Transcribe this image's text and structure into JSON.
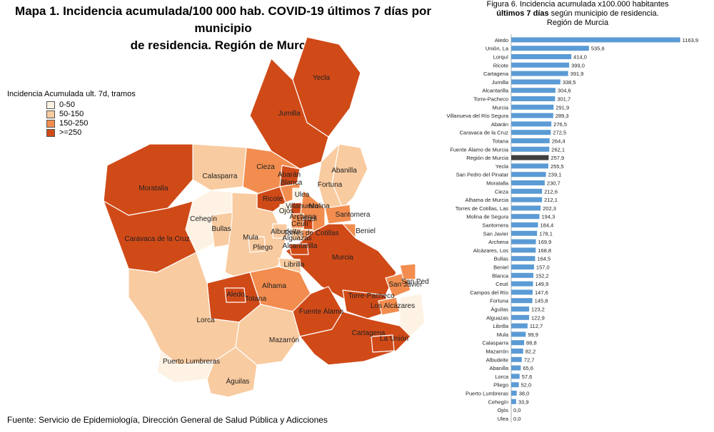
{
  "map": {
    "title_line1": "Mapa 1. Incidencia acumulada/100 000 hab. COVID-19 últimos 7 días por municipio",
    "title_line2": "de residencia. Región de Murcia",
    "legend_title": "Incidencia Acumulada ult. 7d, tramos",
    "legend": [
      {
        "label": "0-50",
        "color": "#fdf2e3"
      },
      {
        "label": "50-150",
        "color": "#f9cba0"
      },
      {
        "label": "150-250",
        "color": "#f28d4f"
      },
      {
        "label": ">=250",
        "color": "#d04a18"
      }
    ],
    "municipalities": [
      "Yecla",
      "Jumilla",
      "Abanilla",
      "Cieza",
      "Calasparra",
      "Moratalla",
      "Abarán",
      "Fortuna",
      "Blanca",
      "Ricote",
      "Ulea",
      "Ojós",
      "Villanueva",
      "Archena",
      "Molina",
      "Santomera",
      "Beniel",
      "Cehegín",
      "Bullas",
      "Mula",
      "Pliego",
      "Albudeite",
      "Ceutí",
      "Lorquí",
      "Alguazas",
      "Torres de Cotillas",
      "Caravaca de la Cruz",
      "Murcia",
      "Alcantarilla",
      "Librilla",
      "Alhama",
      "Aledo",
      "Totana",
      "Lorca",
      "Fuente Álamo",
      "Torre-Pacheco",
      "San Pedro",
      "San Javier",
      "Los Alcázares",
      "Cartagena",
      "La Unión",
      "Mazarrón",
      "Puerto Lumbreras",
      "Águilas"
    ],
    "source": "Fuente: Servicio de Epidemiología, Dirección General de Salud Pública y Adicciones"
  },
  "chart": {
    "title_line1": "Figura 6. Incidencia acumulada x100.000 habitantes",
    "title_line2": "últimos 7 días",
    "title_line2b": " según municipio de residencia.",
    "title_line3": "Región de Murcia"
  },
  "chart_data": {
    "type": "bar",
    "orientation": "horizontal",
    "bar_color": "#5b9bd5",
    "highlight_color": "#3f3f3f",
    "highlight_category": "Región de Murcia",
    "xlim": [
      0,
      1200
    ],
    "categories": [
      "Aledo",
      "Unión, La",
      "Lorquí",
      "Ricote",
      "Cartagena",
      "Jumilla",
      "Alcantarilla",
      "Torre-Pacheco",
      "Murcia",
      "Villanueva del Río Segura",
      "Abarán",
      "Caravaca de la Cruz",
      "Totana",
      "Fuente Álamo de Murcia",
      "Región de Murcia",
      "Yecla",
      "San Pedro del Pinatar",
      "Moratalla",
      "Cieza",
      "Alhama de Murcia",
      "Torres de Cotillas, Las",
      "Molina de Segura",
      "Santomera",
      "San Javier",
      "Archena",
      "Alcázares, Los",
      "Bullas",
      "Beniel",
      "Blanca",
      "Ceutí",
      "Campos del Río",
      "Fortuna",
      "Águilas",
      "Alguazas",
      "Librilla",
      "Mula",
      "Calasparra",
      "Mazarrón",
      "Albudeite",
      "Abanilla",
      "Lorca",
      "Pliego",
      "Puerto Lumbreras",
      "Cehegín",
      "Ojós",
      "Ulea"
    ],
    "values": [
      1163.9,
      535.6,
      414.0,
      399.0,
      391.9,
      338.5,
      304.6,
      301.7,
      291.9,
      289.3,
      276.5,
      272.5,
      264.4,
      262.1,
      257.9,
      255.5,
      239.1,
      230.7,
      212.6,
      212.1,
      202.3,
      194.3,
      184.4,
      178.1,
      169.9,
      168.8,
      164.5,
      157.0,
      152.2,
      149.9,
      147.6,
      145.8,
      123.2,
      122.9,
      112.7,
      99.9,
      88.8,
      82.2,
      72.7,
      65.6,
      57.6,
      52.0,
      38.0,
      33.9,
      0.0,
      0.0
    ],
    "value_labels": [
      "1163,9",
      "535,6",
      "414,0",
      "399,0",
      "391,9",
      "338,5",
      "304,6",
      "301,7",
      "291,9",
      "289,3",
      "276,5",
      "272,5",
      "264,4",
      "262,1",
      "257,9",
      "255,5",
      "239,1",
      "230,7",
      "212,6",
      "212,1",
      "202,3",
      "194,3",
      "184,4",
      "178,1",
      "169,9",
      "168,8",
      "164,5",
      "157,0",
      "152,2",
      "149,9",
      "147,6",
      "145,8",
      "123,2",
      "122,9",
      "112,7",
      "99,9",
      "88,8",
      "82,2",
      "72,7",
      "65,6",
      "57,6",
      "52,0",
      "38,0",
      "33,9",
      "0,0",
      "0,0"
    ]
  }
}
